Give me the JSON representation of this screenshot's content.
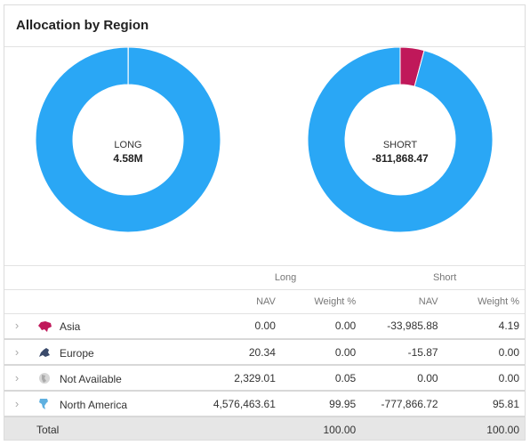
{
  "card": {
    "title": "Allocation by Region"
  },
  "chart_data": [
    {
      "type": "pie",
      "center_label": "LONG",
      "center_value": "4.58M",
      "categories": [
        "Asia",
        "Europe",
        "Not Available",
        "North America"
      ],
      "values": [
        0.0,
        0.0,
        0.05,
        99.95
      ],
      "colors": [
        "#c0185a",
        "#3a4a6b",
        "#bbbbbb",
        "#2aa7f5"
      ]
    },
    {
      "type": "pie",
      "center_label": "SHORT",
      "center_value": "-811,868.47",
      "categories": [
        "Asia",
        "Europe",
        "Not Available",
        "North America"
      ],
      "values": [
        4.19,
        0.0,
        0.0,
        95.81
      ],
      "colors": [
        "#c0185a",
        "#3a4a6b",
        "#bbbbbb",
        "#2aa7f5"
      ]
    }
  ],
  "table": {
    "groups": {
      "long": "Long",
      "short": "Short"
    },
    "columns": {
      "long_nav": "NAV",
      "long_weight": "Weight %",
      "short_nav": "NAV",
      "short_weight": "Weight %"
    },
    "rows": [
      {
        "name": "Asia",
        "icon": "asia-map-icon",
        "icon_color": "#c0185a",
        "long_nav": "0.00",
        "long_weight": "0.00",
        "short_nav": "-33,985.88",
        "short_weight": "4.19"
      },
      {
        "name": "Europe",
        "icon": "europe-map-icon",
        "icon_color": "#3a4a6b",
        "long_nav": "20.34",
        "long_weight": "0.00",
        "short_nav": "-15.87",
        "short_weight": "0.00"
      },
      {
        "name": "Not Available",
        "icon": "globe-icon",
        "icon_color": "#bbbbbb",
        "long_nav": "2,329.01",
        "long_weight": "0.05",
        "short_nav": "0.00",
        "short_weight": "0.00"
      },
      {
        "name": "North America",
        "icon": "north-america-map-icon",
        "icon_color": "#5fb0e0",
        "long_nav": "4,576,463.61",
        "long_weight": "99.95",
        "short_nav": "-777,866.72",
        "short_weight": "95.81"
      }
    ],
    "total": {
      "label": "Total",
      "long_weight": "100.00",
      "short_weight": "100.00"
    }
  }
}
